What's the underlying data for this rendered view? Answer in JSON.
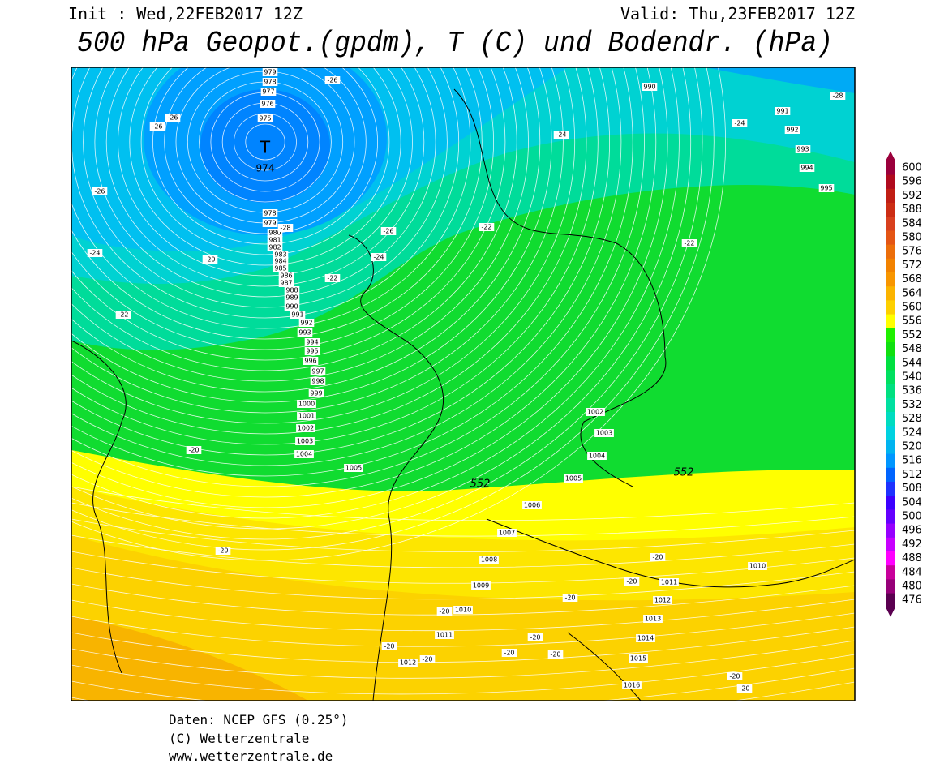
{
  "header": {
    "init": "Init : Wed,22FEB2017 12Z",
    "valid": "Valid: Thu,23FEB2017 12Z",
    "title": "500 hPa Geopot.(gpdm), T (C) und Bodendr. (hPa)"
  },
  "map": {
    "low_marker": "T",
    "isobar_labels": [
      979,
      978,
      977,
      976,
      975,
      974,
      978,
      979,
      980,
      981,
      982,
      983,
      984,
      985,
      986,
      987,
      988,
      989,
      990,
      991,
      992,
      993,
      994,
      995,
      996,
      997,
      998,
      999,
      1000,
      1001,
      1002,
      1003,
      1004,
      1005,
      1006,
      1007,
      1008,
      1009,
      1010,
      1011,
      1012,
      1002,
      1003,
      1004,
      1005,
      990,
      991,
      992,
      993,
      994,
      995,
      1010,
      1011,
      1012,
      1013,
      1014,
      1015,
      1016
    ],
    "temperature_labels": [
      -26,
      -28,
      -26,
      -26,
      -24,
      -24,
      -26,
      -28,
      -26,
      -22,
      -24,
      -20,
      -24,
      -22,
      -22,
      -22,
      -20,
      -20,
      -20,
      -20,
      -20,
      -20,
      -20,
      -20,
      -20,
      -20,
      -20,
      -20,
      -20
    ],
    "contour_labels": [
      552,
      552
    ]
  },
  "legend": {
    "levels": [
      600,
      596,
      592,
      588,
      584,
      580,
      576,
      572,
      568,
      564,
      560,
      556,
      552,
      548,
      544,
      540,
      536,
      532,
      528,
      524,
      520,
      516,
      512,
      508,
      504,
      500,
      496,
      492,
      488,
      484,
      480,
      476
    ],
    "colors": [
      "#9b003c",
      "#b00a1e",
      "#c01e14",
      "#cc2d14",
      "#d8401e",
      "#e45514",
      "#ec6e0a",
      "#f28200",
      "#f89600",
      "#fbb400",
      "#fdd000",
      "#ffff00",
      "#20f000",
      "#10e010",
      "#00e040",
      "#00e060",
      "#00e080",
      "#00e0a0",
      "#00dcc0",
      "#00d2e0",
      "#00b4f0",
      "#0096ff",
      "#0064ff",
      "#1e32ff",
      "#3c00ff",
      "#6400ff",
      "#9600ff",
      "#c800ff",
      "#ff00ff",
      "#c8009b",
      "#960078",
      "#5a0050"
    ]
  },
  "footer": {
    "source": "Daten: NCEP GFS (0.25°)",
    "copyright": "(C) Wetterzentrale",
    "url": "www.wetterzentrale.de"
  }
}
